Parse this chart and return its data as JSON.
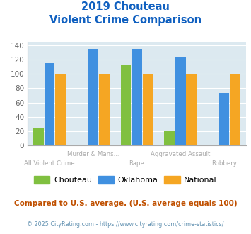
{
  "title_line1": "2019 Chouteau",
  "title_line2": "Violent Crime Comparison",
  "categories": [
    "All Violent Crime",
    "Murder & Mans...",
    "Rape",
    "Aggravated Assault",
    "Robbery"
  ],
  "labels_top": [
    "",
    "Murder & Mans...",
    "",
    "Aggravated Assault",
    ""
  ],
  "labels_bot": [
    "All Violent Crime",
    "",
    "Rape",
    "",
    "Robbery"
  ],
  "chouteau": [
    25,
    0,
    113,
    20,
    0
  ],
  "oklahoma": [
    115,
    135,
    135,
    123,
    73
  ],
  "national": [
    100,
    100,
    100,
    100,
    100
  ],
  "chouteau_color": "#80c040",
  "oklahoma_color": "#4090e0",
  "national_color": "#f5a623",
  "bg_color": "#dce9f0",
  "ylim": [
    0,
    145
  ],
  "yticks": [
    0,
    20,
    40,
    60,
    80,
    100,
    120,
    140
  ],
  "footnote": "Compared to U.S. average. (U.S. average equals 100)",
  "copyright": "© 2025 CityRating.com - https://www.cityrating.com/crime-statistics/",
  "title_color": "#1060c0",
  "footnote_color": "#c05000",
  "copyright_color": "#6090b0"
}
